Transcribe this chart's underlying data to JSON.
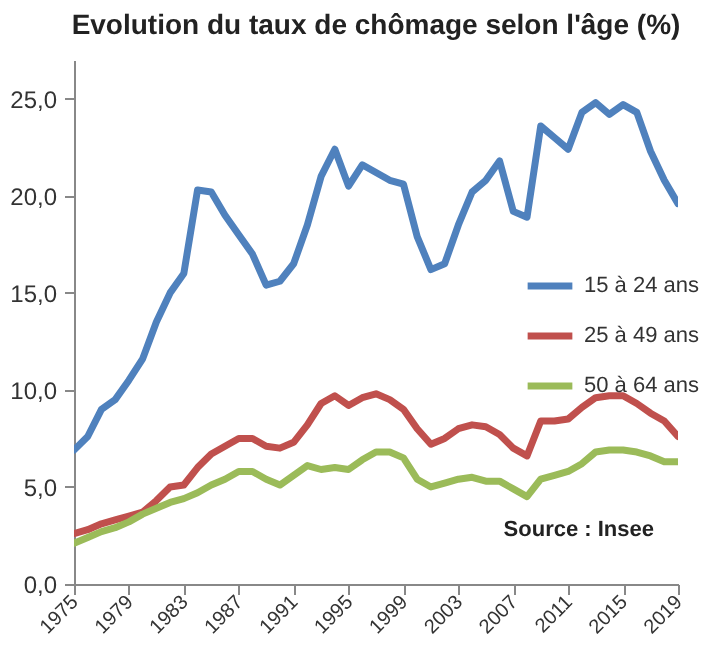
{
  "chart_data": {
    "type": "line",
    "title": "Evolution du taux de chômage selon l'âge (%)",
    "annotations": [
      "Source : Insee"
    ],
    "x": [
      1975,
      1976,
      1977,
      1978,
      1979,
      1980,
      1981,
      1982,
      1983,
      1984,
      1985,
      1986,
      1987,
      1988,
      1989,
      1990,
      1991,
      1992,
      1993,
      1994,
      1995,
      1996,
      1997,
      1998,
      1999,
      2000,
      2001,
      2002,
      2003,
      2004,
      2005,
      2006,
      2007,
      2008,
      2009,
      2010,
      2011,
      2012,
      2013,
      2014,
      2015,
      2016,
      2017,
      2018,
      2019
    ],
    "series": [
      {
        "name": "15 à 24 ans",
        "color": "#4f81bd",
        "values": [
          6.9,
          7.6,
          9.0,
          9.5,
          10.5,
          11.6,
          13.5,
          15.0,
          16.0,
          20.3,
          20.2,
          19.0,
          18.0,
          17.0,
          15.4,
          15.6,
          16.5,
          18.5,
          21.0,
          22.4,
          20.5,
          21.6,
          21.2,
          20.8,
          20.6,
          17.9,
          16.2,
          16.5,
          18.5,
          20.2,
          20.8,
          21.8,
          19.2,
          18.9,
          23.6,
          23.0,
          22.4,
          24.3,
          24.8,
          24.2,
          24.7,
          24.3,
          22.3,
          20.8,
          19.6
        ]
      },
      {
        "name": "25 à 49 ans",
        "color": "#c0504d",
        "values": [
          2.6,
          2.8,
          3.1,
          3.3,
          3.5,
          3.7,
          4.3,
          5.0,
          5.1,
          6.0,
          6.7,
          7.1,
          7.5,
          7.5,
          7.1,
          7.0,
          7.3,
          8.2,
          9.3,
          9.7,
          9.2,
          9.6,
          9.8,
          9.5,
          9.0,
          8.0,
          7.2,
          7.5,
          8.0,
          8.2,
          8.1,
          7.7,
          7.0,
          6.6,
          8.4,
          8.4,
          8.5,
          9.1,
          9.6,
          9.7,
          9.7,
          9.3,
          8.8,
          8.4,
          7.6
        ]
      },
      {
        "name": "50 à 64 ans",
        "color": "#9bbb59",
        "values": [
          2.1,
          2.4,
          2.7,
          2.9,
          3.2,
          3.6,
          3.9,
          4.2,
          4.4,
          4.7,
          5.1,
          5.4,
          5.8,
          5.8,
          5.4,
          5.1,
          5.6,
          6.1,
          5.9,
          6.0,
          5.9,
          6.4,
          6.8,
          6.8,
          6.5,
          5.4,
          5.0,
          5.2,
          5.4,
          5.5,
          5.3,
          5.3,
          4.9,
          4.5,
          5.4,
          5.6,
          5.8,
          6.2,
          6.8,
          6.9,
          6.9,
          6.8,
          6.6,
          6.3,
          6.3
        ]
      }
    ],
    "xlim": [
      1975,
      2019
    ],
    "xticks": [
      1975,
      1979,
      1983,
      1987,
      1991,
      1995,
      1999,
      2003,
      2007,
      2011,
      2015,
      2019
    ],
    "ylim": [
      0,
      27
    ],
    "yticks": [
      {
        "value": 0,
        "label": "0,0"
      },
      {
        "value": 5,
        "label": "5,0"
      },
      {
        "value": 10,
        "label": "10,0"
      },
      {
        "value": 15,
        "label": "15,0"
      },
      {
        "value": 20,
        "label": "20,0"
      },
      {
        "value": 25,
        "label": "25,0"
      }
    ],
    "grid": false,
    "legend": "right",
    "line_style": "solid"
  }
}
